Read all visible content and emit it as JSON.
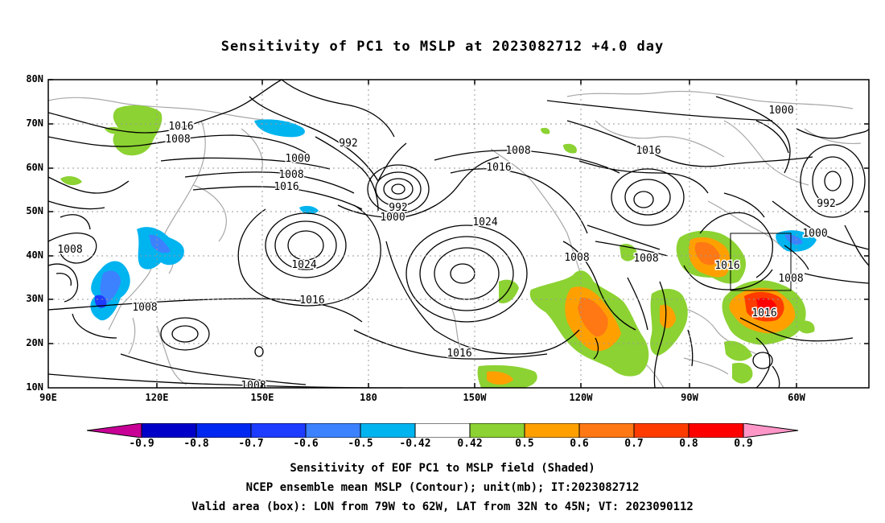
{
  "title": "Sensitivity of PC1 to MSLP at 2023082712 +4.0 day",
  "lat_labels": [
    "80N",
    "70N",
    "60N",
    "50N",
    "40N",
    "30N",
    "20N",
    "10N"
  ],
  "lon_labels": [
    "90E",
    "120E",
    "150E",
    "180",
    "150W",
    "120W",
    "90W",
    "60W"
  ],
  "colorbar": {
    "labels": [
      "-0.9",
      "-0.8",
      "-0.7",
      "-0.6",
      "-0.5",
      "-0.42",
      "0.42",
      "0.5",
      "0.6",
      "0.7",
      "0.8",
      "0.9"
    ],
    "colors": [
      "#c80096",
      "#0000c8",
      "#0028f0",
      "#1e3cff",
      "#3c82ff",
      "#00b4f0",
      "#ffffff",
      "#8cd232",
      "#ffa000",
      "#ff7814",
      "#ff3c00",
      "#ff0000",
      "#ff96c8"
    ]
  },
  "contour_labels": [
    {
      "text": "1016"
    },
    {
      "text": "1008"
    },
    {
      "text": "1000"
    },
    {
      "text": "1008"
    },
    {
      "text": "1016"
    },
    {
      "text": "992"
    },
    {
      "text": "992"
    },
    {
      "text": "1000"
    },
    {
      "text": "1008"
    },
    {
      "text": "1016"
    },
    {
      "text": "1024"
    },
    {
      "text": "1024"
    },
    {
      "text": "1016"
    },
    {
      "text": "1016"
    },
    {
      "text": "1008"
    },
    {
      "text": "1008"
    },
    {
      "text": "1008"
    },
    {
      "text": "1008"
    },
    {
      "text": "1000"
    },
    {
      "text": "1016"
    },
    {
      "text": "992"
    },
    {
      "text": "1000"
    },
    {
      "text": "1016"
    },
    {
      "text": "1008"
    },
    {
      "text": "1016"
    },
    {
      "text": "1008"
    }
  ],
  "caption": {
    "line1": "Sensitivity of EOF PC1 to MSLP field (Shaded)",
    "line2": "NCEP ensemble mean MSLP (Contour); unit(mb); IT:2023082712",
    "line3": "Valid area (box): LON from 79W to 62W, LAT from 32N to 45N; VT: 2023090112"
  }
}
